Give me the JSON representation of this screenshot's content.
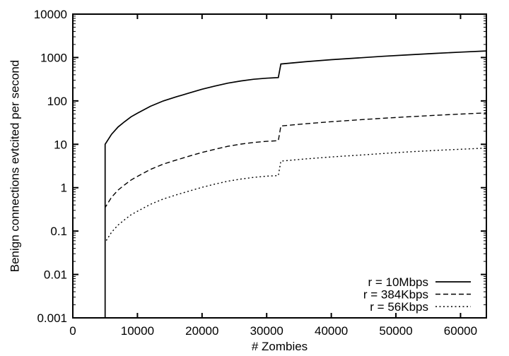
{
  "figure": {
    "background": "#ffffff",
    "line_color": "#000000"
  },
  "chart_data": {
    "type": "line",
    "title": "",
    "xlabel": "# Zombies",
    "ylabel": "Benign connections evtcited per second",
    "grid": false,
    "legend_position": "inside-bottom-right",
    "x_axis": {
      "scale": "linear",
      "min": 0,
      "max": 64000,
      "ticks": [
        0,
        10000,
        20000,
        30000,
        40000,
        50000,
        60000
      ],
      "tick_labels": [
        "0",
        "10000",
        "20000",
        "30000",
        "40000",
        "50000",
        "60000"
      ]
    },
    "y_axis": {
      "scale": "log",
      "min": 0.001,
      "max": 10000,
      "ticks": [
        10000,
        1000,
        100,
        10,
        1,
        0.1,
        0.01,
        0.001
      ],
      "tick_labels": [
        "10000",
        "1000",
        "100",
        "10",
        "1",
        "0.1",
        "0.01",
        "0.001"
      ]
    },
    "series": [
      {
        "name": "r = 10Mbps",
        "key": "r-10mbps",
        "style": "solid",
        "points": [
          [
            5000,
            0.001
          ],
          [
            5000,
            10
          ],
          [
            6000,
            17
          ],
          [
            7000,
            25
          ],
          [
            8000,
            33
          ],
          [
            9000,
            43
          ],
          [
            10000,
            52
          ],
          [
            12000,
            75
          ],
          [
            14000,
            100
          ],
          [
            16000,
            124
          ],
          [
            18000,
            152
          ],
          [
            20000,
            186
          ],
          [
            22000,
            220
          ],
          [
            24000,
            257
          ],
          [
            26000,
            288
          ],
          [
            28000,
            315
          ],
          [
            30000,
            334
          ],
          [
            31800,
            345
          ],
          [
            32200,
            710
          ],
          [
            36000,
            800
          ],
          [
            40000,
            890
          ],
          [
            44000,
            975
          ],
          [
            48000,
            1065
          ],
          [
            52000,
            1155
          ],
          [
            56000,
            1245
          ],
          [
            60000,
            1330
          ],
          [
            64000,
            1420
          ]
        ]
      },
      {
        "name": "r = 384Kbps",
        "key": "r-384kbps",
        "style": "dashed",
        "points": [
          [
            5000,
            0.001
          ],
          [
            5000,
            0.35
          ],
          [
            6000,
            0.6
          ],
          [
            7000,
            0.88
          ],
          [
            8000,
            1.16
          ],
          [
            9000,
            1.5
          ],
          [
            10000,
            1.82
          ],
          [
            12000,
            2.63
          ],
          [
            14000,
            3.5
          ],
          [
            16000,
            4.34
          ],
          [
            18000,
            5.32
          ],
          [
            20000,
            6.5
          ],
          [
            22000,
            7.7
          ],
          [
            24000,
            9.0
          ],
          [
            26000,
            10.1
          ],
          [
            28000,
            11.0
          ],
          [
            30000,
            11.7
          ],
          [
            31800,
            12.1
          ],
          [
            32200,
            26.5
          ],
          [
            36000,
            29.8
          ],
          [
            40000,
            33.2
          ],
          [
            44000,
            36.4
          ],
          [
            48000,
            39.8
          ],
          [
            52000,
            43.1
          ],
          [
            56000,
            46.5
          ],
          [
            60000,
            49.8
          ],
          [
            64000,
            53
          ]
        ]
      },
      {
        "name": "r = 56Kbps",
        "key": "r-56kbps",
        "style": "dotted",
        "points": [
          [
            5000,
            0.001
          ],
          [
            5000,
            0.055
          ],
          [
            6000,
            0.094
          ],
          [
            7000,
            0.138
          ],
          [
            8000,
            0.182
          ],
          [
            9000,
            0.237
          ],
          [
            10000,
            0.286
          ],
          [
            12000,
            0.413
          ],
          [
            14000,
            0.55
          ],
          [
            16000,
            0.682
          ],
          [
            18000,
            0.836
          ],
          [
            20000,
            1.02
          ],
          [
            22000,
            1.21
          ],
          [
            24000,
            1.41
          ],
          [
            26000,
            1.58
          ],
          [
            28000,
            1.73
          ],
          [
            30000,
            1.84
          ],
          [
            31800,
            1.9
          ],
          [
            32200,
            4.1
          ],
          [
            36000,
            4.6
          ],
          [
            40000,
            5.1
          ],
          [
            44000,
            5.6
          ],
          [
            48000,
            6.15
          ],
          [
            52000,
            6.7
          ],
          [
            56000,
            7.2
          ],
          [
            60000,
            7.7
          ],
          [
            64000,
            8.2
          ]
        ]
      }
    ]
  }
}
